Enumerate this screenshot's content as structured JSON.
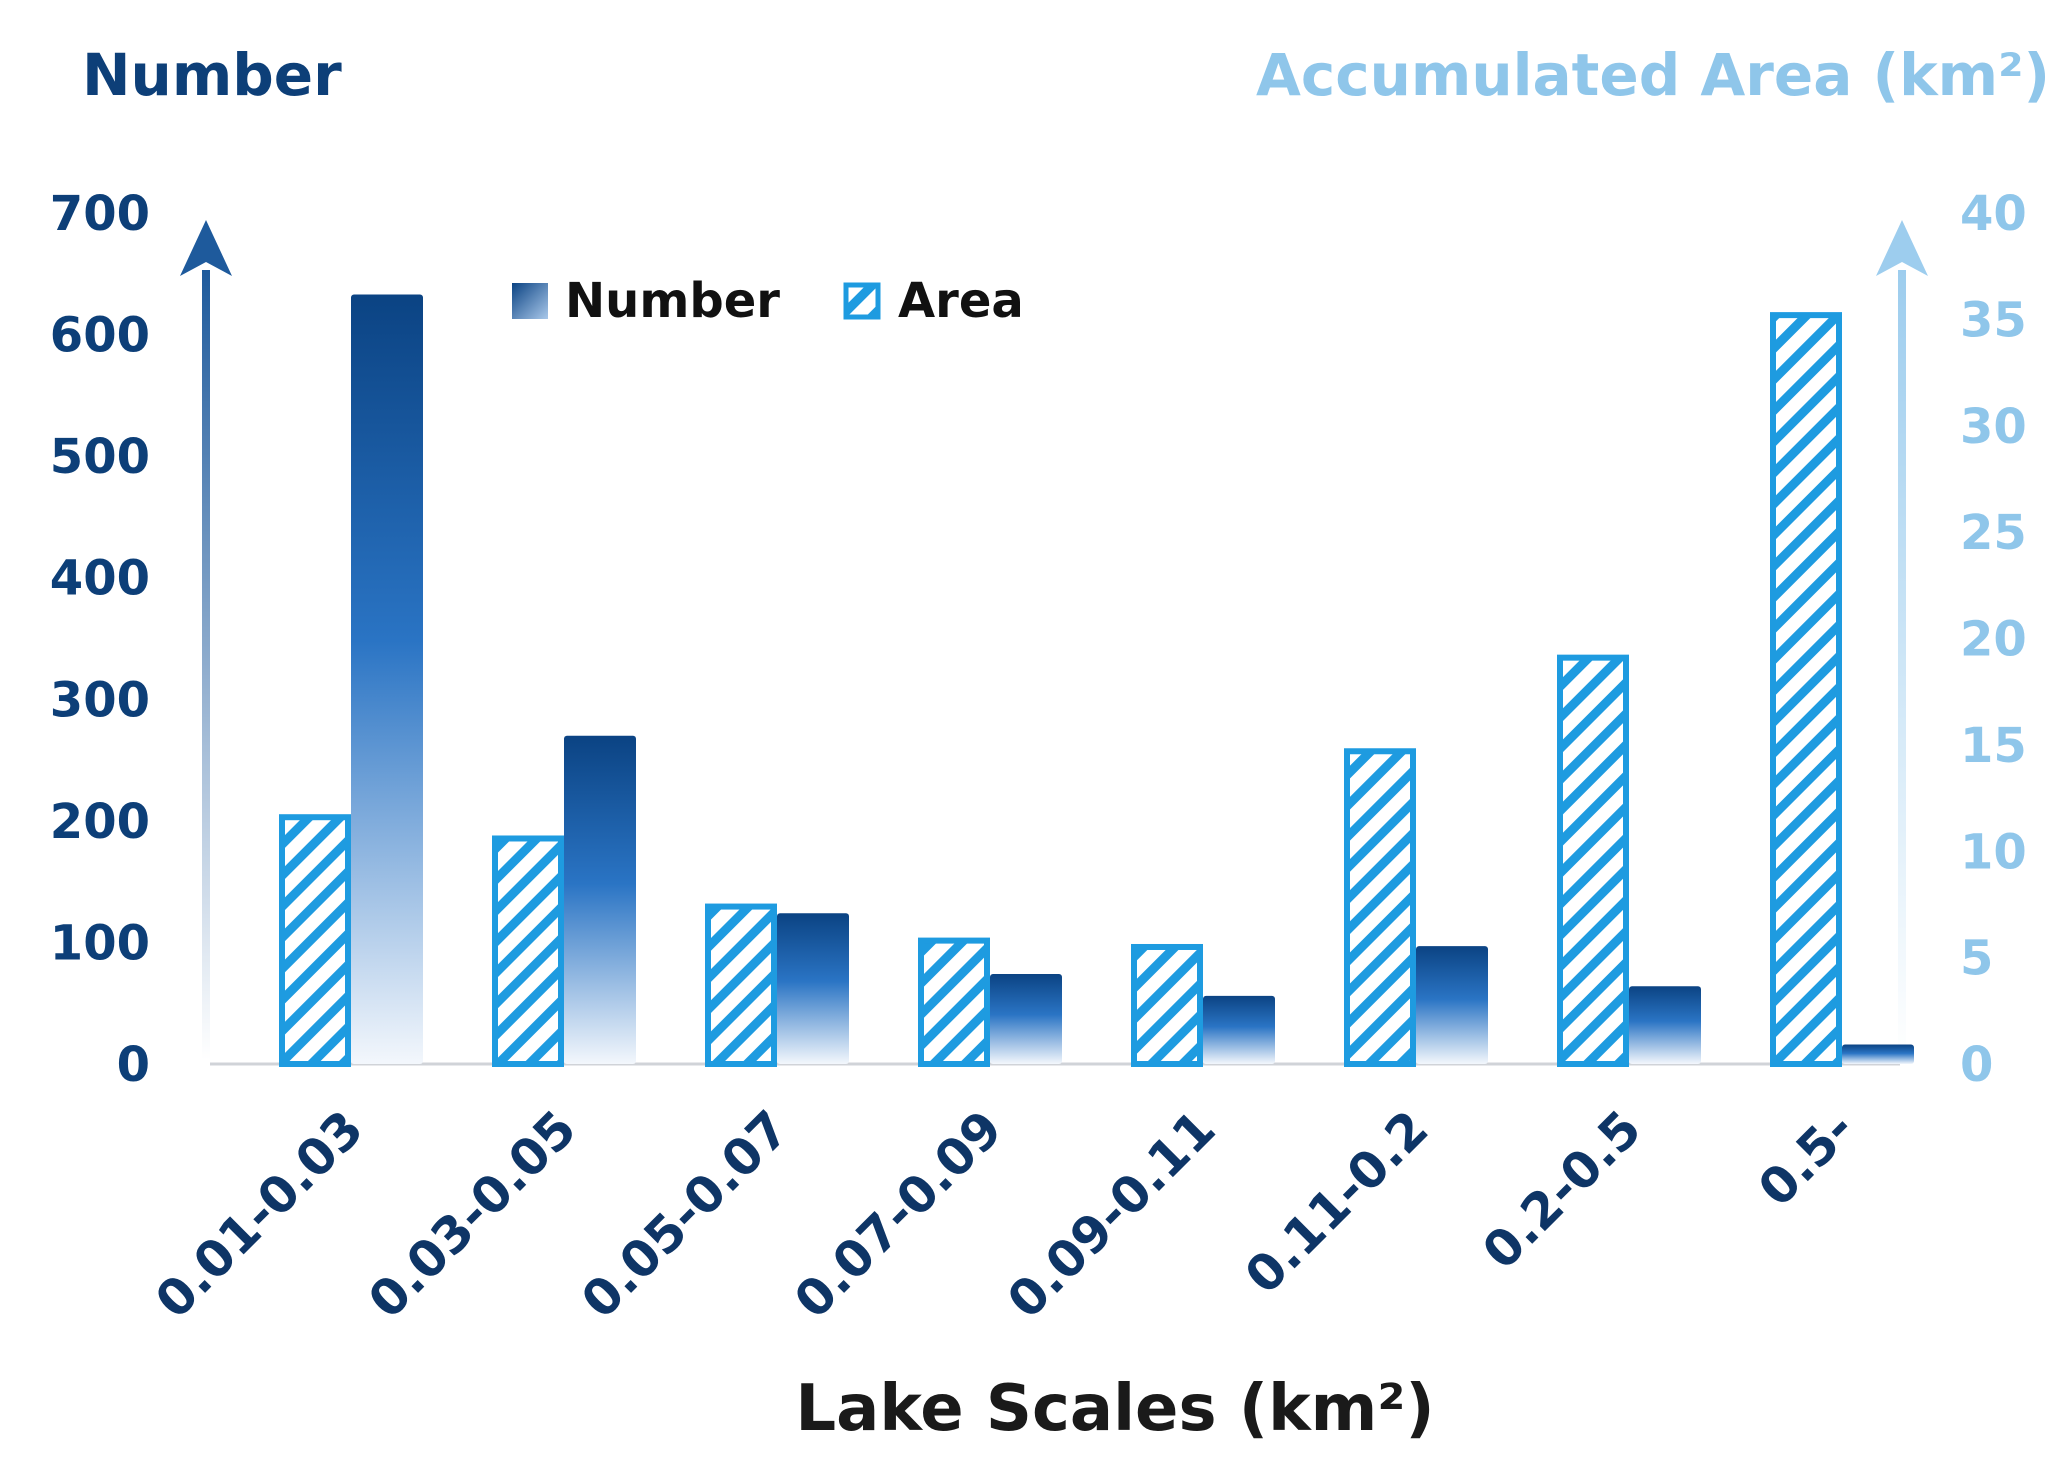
{
  "chart_data": {
    "type": "bar",
    "title_left": "Number",
    "title_right": "Accumulated Area (km²)",
    "xlabel": "Lake Scales (km²)",
    "categories": [
      "0.01-0.03",
      "0.03-0.05",
      "0.05-0.07",
      "0.07-0.09",
      "0.09-0.11",
      "0.11-0.2",
      "0.2-0.5",
      "0.5-"
    ],
    "series": [
      {
        "name": "Area",
        "axis": "right",
        "values": [
          11.6,
          10.6,
          7.4,
          5.8,
          5.5,
          14.7,
          19.1,
          35.2
        ]
      },
      {
        "name": "Number",
        "axis": "left",
        "values": [
          633,
          270,
          124,
          74,
          56,
          97,
          64,
          16
        ]
      }
    ],
    "ylim_left": [
      0,
      700
    ],
    "yticks_left": [
      0,
      100,
      200,
      300,
      400,
      500,
      600,
      700
    ],
    "ylim_right": [
      0,
      40
    ],
    "yticks_right": [
      0,
      5,
      10,
      15,
      20,
      25,
      30,
      35,
      40
    ],
    "legend_position": "top-center",
    "grid": false,
    "colors": {
      "left_axis": "#0d3f78",
      "right_axis": "#8fc6ea",
      "number_bar_top": "#0b4383",
      "number_bar_mid": "#2a74c4",
      "area_border": "#1e9be0",
      "x_labels": "#0e3566",
      "x_title": "#1a1a1a"
    }
  }
}
